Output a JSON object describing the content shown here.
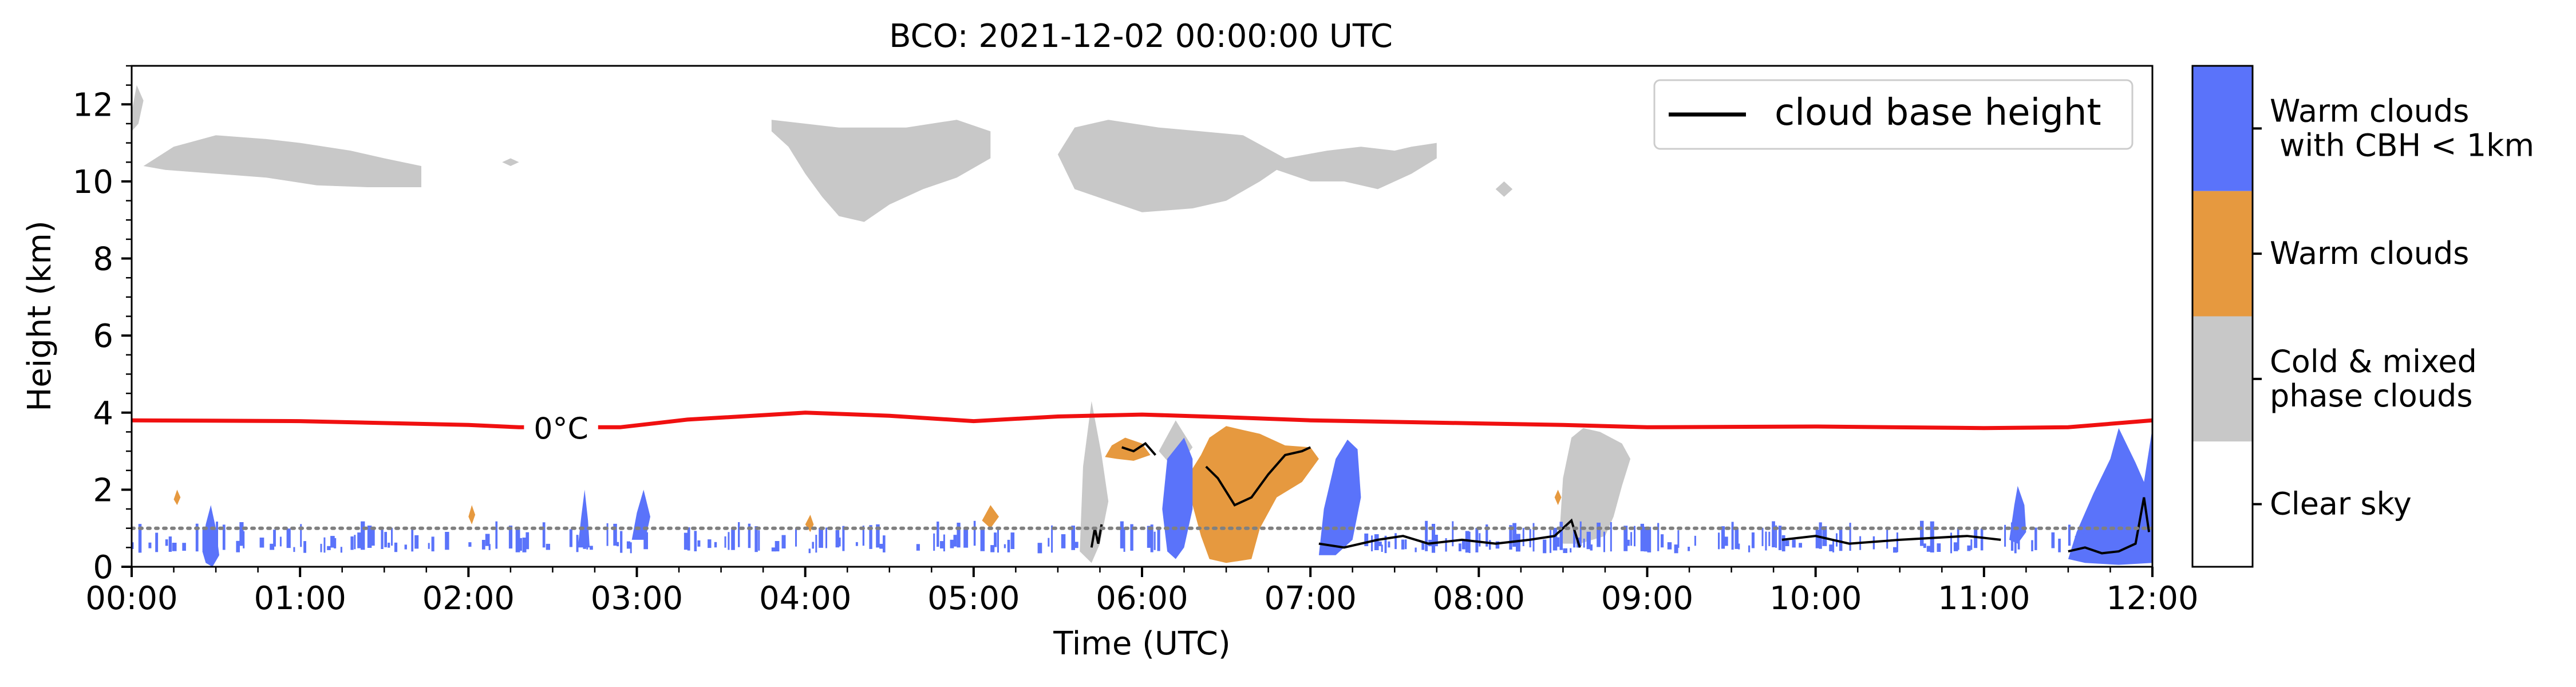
{
  "chart_data": {
    "type": "heatmap",
    "title": "BCO: 2021-12-02 00:00:00 UTC",
    "xlabel": "Time (UTC)",
    "ylabel": "Height (km)",
    "xlim": [
      0,
      12
    ],
    "ylim": [
      0,
      13
    ],
    "x_ticks": [
      {
        "value": 0,
        "label": "00:00"
      },
      {
        "value": 1,
        "label": "01:00"
      },
      {
        "value": 2,
        "label": "02:00"
      },
      {
        "value": 3,
        "label": "03:00"
      },
      {
        "value": 4,
        "label": "04:00"
      },
      {
        "value": 5,
        "label": "05:00"
      },
      {
        "value": 6,
        "label": "06:00"
      },
      {
        "value": 7,
        "label": "07:00"
      },
      {
        "value": 8,
        "label": "08:00"
      },
      {
        "value": 9,
        "label": "09:00"
      },
      {
        "value": 10,
        "label": "10:00"
      },
      {
        "value": 11,
        "label": "11:00"
      },
      {
        "value": 12,
        "label": "12:00"
      }
    ],
    "y_ticks": [
      {
        "value": 0,
        "label": "0"
      },
      {
        "value": 2,
        "label": "2"
      },
      {
        "value": 4,
        "label": "4"
      },
      {
        "value": 6,
        "label": "6"
      },
      {
        "value": 8,
        "label": "8"
      },
      {
        "value": 10,
        "label": "10"
      },
      {
        "value": 12,
        "label": "12"
      }
    ],
    "legend": {
      "placement": "top-right",
      "entries": [
        {
          "label": "cloud base height",
          "color": "#000000"
        }
      ]
    },
    "colorbar": {
      "categories": [
        {
          "label_lines": [
            "Warm clouds",
            " with CBH < 1km"
          ],
          "color": "#5a73fa"
        },
        {
          "label_lines": [
            "Warm clouds"
          ],
          "color": "#e6993f"
        },
        {
          "label_lines": [
            "Cold & mixed",
            "phase clouds"
          ],
          "color": "#c8c8c8"
        },
        {
          "label_lines": [
            "Clear sky"
          ],
          "color": "#ffffff"
        }
      ]
    },
    "freezing_level": {
      "label": "0°C",
      "label_x": 2.55,
      "color": "#f01010",
      "points": [
        [
          0,
          3.8
        ],
        [
          1,
          3.78
        ],
        [
          2,
          3.68
        ],
        [
          2.3,
          3.62
        ],
        [
          2.9,
          3.62
        ],
        [
          3.3,
          3.82
        ],
        [
          4,
          4.0
        ],
        [
          4.5,
          3.92
        ],
        [
          5,
          3.78
        ],
        [
          5.5,
          3.9
        ],
        [
          6,
          3.95
        ],
        [
          6.5,
          3.88
        ],
        [
          7,
          3.8
        ],
        [
          8,
          3.72
        ],
        [
          8.5,
          3.68
        ],
        [
          9,
          3.62
        ],
        [
          10,
          3.64
        ],
        [
          11,
          3.6
        ],
        [
          11.5,
          3.62
        ],
        [
          12,
          3.8
        ]
      ]
    },
    "cbh_reference_km": 1.0,
    "clouds": [
      {
        "category": "cold",
        "poly": [
          [
            0,
            11.8
          ],
          [
            0.03,
            12.5
          ],
          [
            0.07,
            12.1
          ],
          [
            0.04,
            11.5
          ],
          [
            0,
            11.3
          ]
        ]
      },
      {
        "category": "cold",
        "poly": [
          [
            0.07,
            10.4
          ],
          [
            0.25,
            10.9
          ],
          [
            0.5,
            11.2
          ],
          [
            0.8,
            11.1
          ],
          [
            1.0,
            11.0
          ],
          [
            1.3,
            10.8
          ],
          [
            1.5,
            10.6
          ],
          [
            1.72,
            10.4
          ],
          [
            1.72,
            9.85
          ],
          [
            1.4,
            9.85
          ],
          [
            1.1,
            9.9
          ],
          [
            0.8,
            10.1
          ],
          [
            0.5,
            10.2
          ],
          [
            0.2,
            10.3
          ]
        ]
      },
      {
        "category": "cold",
        "poly": [
          [
            2.2,
            10.5
          ],
          [
            2.25,
            10.6
          ],
          [
            2.3,
            10.5
          ],
          [
            2.25,
            10.4
          ]
        ]
      },
      {
        "category": "cold",
        "poly": [
          [
            3.8,
            11.6
          ],
          [
            4.0,
            11.5
          ],
          [
            4.2,
            11.4
          ],
          [
            4.6,
            11.4
          ],
          [
            4.9,
            11.6
          ],
          [
            5.1,
            11.3
          ],
          [
            5.1,
            10.6
          ],
          [
            4.9,
            10.1
          ],
          [
            4.7,
            9.8
          ],
          [
            4.5,
            9.4
          ],
          [
            4.35,
            8.95
          ],
          [
            4.2,
            9.1
          ],
          [
            4.1,
            9.6
          ],
          [
            4.0,
            10.2
          ],
          [
            3.9,
            10.9
          ],
          [
            3.8,
            11.3
          ]
        ]
      },
      {
        "category": "cold",
        "poly": [
          [
            5.5,
            10.7
          ],
          [
            5.6,
            11.4
          ],
          [
            5.8,
            11.6
          ],
          [
            6.1,
            11.4
          ],
          [
            6.35,
            11.3
          ],
          [
            6.6,
            11.2
          ],
          [
            6.85,
            10.6
          ],
          [
            7.1,
            10.8
          ],
          [
            7.3,
            10.9
          ],
          [
            7.5,
            10.8
          ],
          [
            7.6,
            10.9
          ],
          [
            7.75,
            11.0
          ],
          [
            7.75,
            10.6
          ],
          [
            7.6,
            10.2
          ],
          [
            7.4,
            9.8
          ],
          [
            7.2,
            10.0
          ],
          [
            7.0,
            10.0
          ],
          [
            6.8,
            10.3
          ],
          [
            6.7,
            10.0
          ],
          [
            6.5,
            9.5
          ],
          [
            6.3,
            9.3
          ],
          [
            6.0,
            9.2
          ],
          [
            5.8,
            9.5
          ],
          [
            5.6,
            9.8
          ]
        ]
      },
      {
        "category": "cold",
        "poly": [
          [
            8.1,
            9.8
          ],
          [
            8.15,
            10.0
          ],
          [
            8.2,
            9.8
          ],
          [
            8.15,
            9.6
          ]
        ]
      },
      {
        "category": "cold",
        "poly": [
          [
            5.63,
            0.4
          ],
          [
            5.65,
            2.6
          ],
          [
            5.7,
            4.3
          ],
          [
            5.76,
            2.9
          ],
          [
            5.8,
            1.7
          ],
          [
            5.75,
            0.6
          ],
          [
            5.7,
            0.1
          ]
        ]
      },
      {
        "category": "cold",
        "poly": [
          [
            6.1,
            3.0
          ],
          [
            6.2,
            3.8
          ],
          [
            6.3,
            3.1
          ],
          [
            6.2,
            2.5
          ]
        ]
      },
      {
        "category": "cold",
        "poly": [
          [
            8.48,
            0.9
          ],
          [
            8.5,
            2.3
          ],
          [
            8.55,
            3.35
          ],
          [
            8.62,
            3.6
          ],
          [
            8.72,
            3.5
          ],
          [
            8.85,
            3.2
          ],
          [
            8.9,
            2.8
          ],
          [
            8.85,
            2.1
          ],
          [
            8.8,
            1.3
          ],
          [
            8.75,
            0.8
          ],
          [
            8.6,
            0.6
          ],
          [
            8.5,
            0.6
          ]
        ]
      },
      {
        "category": "warm",
        "poly": [
          [
            6.35,
            2.9
          ],
          [
            6.4,
            3.35
          ],
          [
            6.5,
            3.65
          ],
          [
            6.6,
            3.55
          ],
          [
            6.7,
            3.45
          ],
          [
            6.85,
            3.15
          ],
          [
            7.0,
            3.1
          ],
          [
            7.05,
            2.8
          ],
          [
            6.95,
            2.2
          ],
          [
            6.8,
            1.8
          ],
          [
            6.7,
            1.0
          ],
          [
            6.65,
            0.2
          ],
          [
            6.5,
            0.1
          ],
          [
            6.4,
            0.2
          ],
          [
            6.35,
            0.8
          ],
          [
            6.3,
            1.6
          ],
          [
            6.25,
            2.2
          ]
        ]
      },
      {
        "category": "warm",
        "poly": [
          [
            5.78,
            2.85
          ],
          [
            5.82,
            3.15
          ],
          [
            5.9,
            3.35
          ],
          [
            6.0,
            3.2
          ],
          [
            6.05,
            2.9
          ],
          [
            5.95,
            2.75
          ],
          [
            5.85,
            2.8
          ]
        ]
      },
      {
        "category": "warm",
        "poly": [
          [
            5.05,
            1.2
          ],
          [
            5.1,
            1.6
          ],
          [
            5.15,
            1.3
          ],
          [
            5.1,
            1.0
          ]
        ]
      },
      {
        "category": "warm",
        "poly": [
          [
            0.25,
            1.75
          ],
          [
            0.27,
            2.0
          ],
          [
            0.29,
            1.8
          ],
          [
            0.27,
            1.6
          ]
        ]
      },
      {
        "category": "warm",
        "poly": [
          [
            2.0,
            1.3
          ],
          [
            2.02,
            1.6
          ],
          [
            2.04,
            1.35
          ],
          [
            2.02,
            1.1
          ]
        ]
      },
      {
        "category": "warm",
        "poly": [
          [
            4.0,
            1.1
          ],
          [
            4.03,
            1.35
          ],
          [
            4.05,
            1.1
          ],
          [
            4.03,
            0.9
          ]
        ]
      },
      {
        "category": "warm",
        "poly": [
          [
            8.45,
            1.8
          ],
          [
            8.47,
            2.0
          ],
          [
            8.49,
            1.8
          ],
          [
            8.47,
            1.6
          ]
        ]
      },
      {
        "category": "lowwarm",
        "poly": [
          [
            6.15,
            0.4
          ],
          [
            6.12,
            1.5
          ],
          [
            6.15,
            2.8
          ],
          [
            6.25,
            3.35
          ],
          [
            6.3,
            2.8
          ],
          [
            6.3,
            1.5
          ],
          [
            6.25,
            0.5
          ],
          [
            6.2,
            0.2
          ]
        ]
      },
      {
        "category": "lowwarm",
        "poly": [
          [
            7.05,
            0.3
          ],
          [
            7.08,
            1.5
          ],
          [
            7.15,
            2.8
          ],
          [
            7.22,
            3.3
          ],
          [
            7.28,
            3.05
          ],
          [
            7.3,
            1.8
          ],
          [
            7.25,
            0.7
          ],
          [
            7.15,
            0.3
          ]
        ]
      },
      {
        "category": "lowwarm",
        "poly": [
          [
            11.5,
            0.2
          ],
          [
            11.55,
            0.9
          ],
          [
            11.65,
            1.9
          ],
          [
            11.75,
            2.8
          ],
          [
            11.8,
            3.6
          ],
          [
            11.9,
            2.7
          ],
          [
            11.95,
            2.2
          ],
          [
            12.0,
            3.6
          ],
          [
            12.0,
            0.1
          ],
          [
            11.8,
            0.05
          ],
          [
            11.6,
            0.1
          ]
        ]
      },
      {
        "category": "lowwarm",
        "poly": [
          [
            11.15,
            0.7
          ],
          [
            11.18,
            1.6
          ],
          [
            11.2,
            2.1
          ],
          [
            11.24,
            1.6
          ],
          [
            11.25,
            0.9
          ],
          [
            11.2,
            0.6
          ]
        ]
      },
      {
        "category": "lowwarm",
        "poly": [
          [
            0.42,
            0.4
          ],
          [
            0.44,
            1.1
          ],
          [
            0.47,
            1.6
          ],
          [
            0.5,
            1.0
          ],
          [
            0.52,
            0.3
          ],
          [
            0.48,
            0.0
          ],
          [
            0.44,
            0.1
          ]
        ]
      },
      {
        "category": "lowwarm",
        "poly": [
          [
            2.65,
            0.5
          ],
          [
            2.67,
            1.3
          ],
          [
            2.69,
            2.0
          ],
          [
            2.71,
            1.2
          ],
          [
            2.72,
            0.5
          ]
        ]
      },
      {
        "category": "lowwarm",
        "poly": [
          [
            2.97,
            0.7
          ],
          [
            3.0,
            1.4
          ],
          [
            3.04,
            2.0
          ],
          [
            3.08,
            1.3
          ],
          [
            3.05,
            0.7
          ]
        ]
      }
    ],
    "low_cloud_band": {
      "category": "lowwarm",
      "segments": [
        [
          0.0,
          5.6
        ],
        [
          5.85,
          6.1
        ],
        [
          7.3,
          12.0
        ]
      ],
      "y_range": [
        0.35,
        1.15
      ]
    },
    "cbh_lines": [
      [
        [
          5.7,
          0.5
        ],
        [
          5.72,
          1.0
        ],
        [
          5.74,
          0.6
        ],
        [
          5.76,
          1.1
        ]
      ],
      [
        [
          5.88,
          3.1
        ],
        [
          5.95,
          3.0
        ],
        [
          6.02,
          3.2
        ],
        [
          6.08,
          2.9
        ]
      ],
      [
        [
          6.38,
          2.6
        ],
        [
          6.45,
          2.3
        ],
        [
          6.55,
          1.6
        ],
        [
          6.65,
          1.8
        ],
        [
          6.75,
          2.4
        ],
        [
          6.85,
          2.9
        ],
        [
          6.95,
          3.0
        ],
        [
          7.0,
          3.1
        ]
      ],
      [
        [
          7.05,
          0.6
        ],
        [
          7.2,
          0.5
        ],
        [
          7.4,
          0.7
        ],
        [
          7.55,
          0.8
        ],
        [
          7.7,
          0.6
        ],
        [
          7.9,
          0.7
        ],
        [
          8.1,
          0.6
        ],
        [
          8.3,
          0.7
        ],
        [
          8.45,
          0.8
        ],
        [
          8.55,
          1.2
        ],
        [
          8.6,
          0.5
        ]
      ],
      [
        [
          9.8,
          0.7
        ],
        [
          10.0,
          0.8
        ],
        [
          10.2,
          0.6
        ],
        [
          10.5,
          0.7
        ],
        [
          10.9,
          0.8
        ],
        [
          11.1,
          0.7
        ]
      ],
      [
        [
          11.5,
          0.4
        ],
        [
          11.6,
          0.5
        ],
        [
          11.7,
          0.35
        ],
        [
          11.8,
          0.4
        ],
        [
          11.9,
          0.6
        ],
        [
          11.95,
          1.8
        ],
        [
          11.98,
          0.9
        ]
      ]
    ]
  }
}
